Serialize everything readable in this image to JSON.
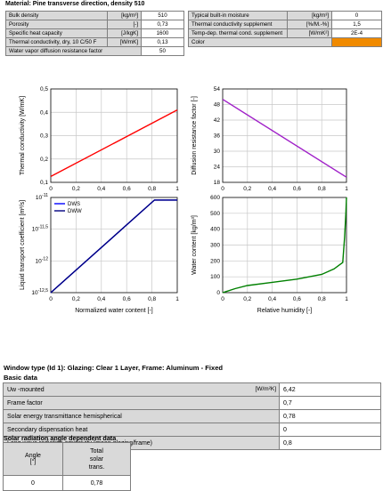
{
  "material": {
    "title": "Material: Pine transverse direction, density 510",
    "left_rows": [
      {
        "label": "Bulk density",
        "unit": "[kg/m³]",
        "value": "510"
      },
      {
        "label": "Porosity",
        "unit": "[-]",
        "value": "0,73"
      },
      {
        "label": "Specific heat capacity",
        "unit": "[J/kgK]",
        "value": "1600"
      },
      {
        "label": "Thermal conductivity, dry, 10 C/50 F",
        "unit": "[W/mK]",
        "value": "0,13"
      },
      {
        "label": "Water vapor diffusion resistance factor",
        "unit": "",
        "value": "50"
      }
    ],
    "right_rows": [
      {
        "label": "Typical built-in moisture",
        "unit": "[kg/m³]",
        "value": "0"
      },
      {
        "label": "Thermal conductivity supplement",
        "unit": "[%/M.-%]",
        "value": "1,5"
      },
      {
        "label": "Temp-dep. thermal cond. supplement",
        "unit": "[W/mK²]",
        "value": "2E-4"
      },
      {
        "label": "Color",
        "unit": "",
        "value": ""
      }
    ],
    "color_swatch": "#f08a00"
  },
  "chart_data": [
    {
      "type": "line",
      "ylabel": "Thermal conductivity [W/mK]",
      "xlim": [
        0,
        1
      ],
      "ylim": [
        0.1,
        0.5
      ],
      "x_ticks": [
        "0",
        "0,2",
        "0,4",
        "0,6",
        "0,8",
        "1"
      ],
      "y_ticks": [
        "0,1",
        "0,2",
        "0,3",
        "0,4",
        "0,5"
      ],
      "grid": true,
      "series": [
        {
          "color": "#ff0000",
          "points": [
            [
              0,
              0.125
            ],
            [
              1,
              0.41
            ]
          ]
        }
      ]
    },
    {
      "type": "line",
      "ylabel": "Diffusion resistance factor [-]",
      "xlim": [
        0,
        1
      ],
      "ylim": [
        18,
        54
      ],
      "x_ticks": [
        "0",
        "0,2",
        "0,4",
        "0,6",
        "0,8",
        "1"
      ],
      "y_ticks": [
        "18",
        "24",
        "30",
        "36",
        "42",
        "48",
        "54"
      ],
      "grid": true,
      "series": [
        {
          "color": "#a020c8",
          "points": [
            [
              0,
              50
            ],
            [
              1,
              20
            ]
          ]
        }
      ]
    },
    {
      "type": "line",
      "xlabel": "Normalized water content [-]",
      "ylabel": "Liquid transport coefficient [m²/s]",
      "xlim": [
        0,
        1
      ],
      "ylim": [
        -12.5,
        -11
      ],
      "yscale": "log",
      "x_ticks": [
        "0",
        "0,2",
        "0,4",
        "0,6",
        "0,8",
        "1"
      ],
      "y_ticks": [
        {
          "base": "10",
          "exp": "-12,5"
        },
        {
          "base": "10",
          "exp": "-12"
        },
        {
          "base": "10",
          "exp": "-11,5"
        },
        {
          "base": "10",
          "exp": "-11"
        }
      ],
      "grid": true,
      "legend_position": "top-left",
      "series": [
        {
          "name": "DWS",
          "color": "#0000ff",
          "points": [
            [
              0,
              -12.5
            ],
            [
              0.82,
              -11.04
            ],
            [
              1,
              -11.04
            ]
          ]
        },
        {
          "name": "DWW",
          "color": "#000080",
          "points": [
            [
              0,
              -12.5
            ],
            [
              0.82,
              -11.04
            ],
            [
              1,
              -11.04
            ]
          ]
        }
      ]
    },
    {
      "type": "line",
      "xlabel": "Relative humidity [-]",
      "ylabel": "Water content [kg/m³]",
      "xlim": [
        0,
        1
      ],
      "ylim": [
        0,
        600
      ],
      "x_ticks": [
        "0",
        "0,2",
        "0,4",
        "0,6",
        "0,8",
        "1"
      ],
      "y_ticks": [
        "0",
        "100",
        "200",
        "300",
        "400",
        "500",
        "600"
      ],
      "grid": true,
      "series": [
        {
          "color": "#008000",
          "points": [
            [
              0,
              0
            ],
            [
              0.1,
              25
            ],
            [
              0.2,
              45
            ],
            [
              0.4,
              65
            ],
            [
              0.6,
              85
            ],
            [
              0.8,
              115
            ],
            [
              0.9,
              150
            ],
            [
              0.97,
              190
            ],
            [
              0.985,
              350
            ],
            [
              0.995,
              500
            ],
            [
              1,
              600
            ]
          ]
        }
      ]
    }
  ],
  "window": {
    "title": "Window type (Id 1): Glazing: Clear 1 Layer, Frame: Aluminum - Fixed",
    "basic_title": "Basic data",
    "basic_rows": [
      {
        "label": "Uw -mounted",
        "unit": "[W/m²K]",
        "value": "6,42"
      },
      {
        "label": "Frame factor",
        "unit": "",
        "value": "0,7"
      },
      {
        "label": "Solar energy transmittance hemispherical",
        "unit": "",
        "value": "0,78"
      },
      {
        "label": "Secondary dispensation heat",
        "unit": "",
        "value": "0"
      },
      {
        "label": "Long wave radiation emissivity (mean glazing/frame)",
        "unit": "",
        "value": "0,8"
      }
    ],
    "solar_title": "Solar radiation angle dependent data",
    "solar_headers": [
      "Angle\n[°]",
      "Total\nsolar\ntrans."
    ],
    "solar_rows": [
      [
        "0",
        "0,78"
      ]
    ]
  }
}
